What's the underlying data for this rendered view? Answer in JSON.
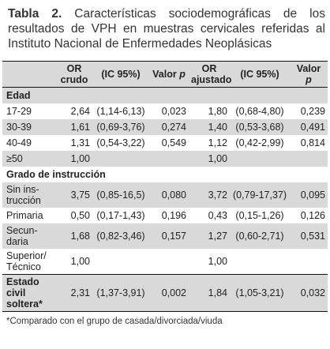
{
  "title": {
    "label": "Tabla 2.",
    "text": "Características sociodemográficas de los resultados de VPH en muestras cervicales referidas al Instituto Nacional de Enfermedades Neoplásicas"
  },
  "table": {
    "header": [
      {
        "text": "OR\ncrudo"
      },
      {
        "text": "(IC 95%)"
      },
      {
        "text": "Valor",
        "var": "p"
      },
      {
        "text": "OR\najustado"
      },
      {
        "text": "(IC 95%)"
      },
      {
        "text": "Valor\n",
        "var": "p"
      }
    ],
    "rows": [
      {
        "section": "Edad"
      },
      {
        "label": "17-29",
        "or_crudo": "2,64",
        "ic_crudo": "(1,14-6,13)",
        "p_crudo": "0,023",
        "or_ajustado": "1,80",
        "ic_ajustado": "(0,68-4,80)",
        "p_ajustado": "0,239"
      },
      {
        "label": "30-39",
        "or_crudo": "1,61",
        "ic_crudo": "(0,69-3,76)",
        "p_crudo": "0,274",
        "or_ajustado": "1,40",
        "ic_ajustado": "(0,53-3,68)",
        "p_ajustado": "0,491"
      },
      {
        "label": "40-49",
        "or_crudo": "1,31",
        "ic_crudo": "(0,54-3,22)",
        "p_crudo": "0,549",
        "or_ajustado": "1,12",
        "ic_ajustado": "(0,42-2,99)",
        "p_ajustado": "0,814"
      },
      {
        "label": "≥50",
        "or_crudo": "1,00",
        "or_ajustado": "1,00"
      },
      {
        "section": "Grado de instrucción"
      },
      {
        "label": "Sin ins-\ntrucción",
        "or_crudo": "3,75",
        "ic_crudo": "(0,85-16,5)",
        "p_crudo": "0,080",
        "or_ajustado": "3,72",
        "ic_ajustado": "(0,79-17,37)",
        "p_ajustado": "0,095"
      },
      {
        "label": "Primaria",
        "or_crudo": "0,50",
        "ic_crudo": "(0,17-1,43)",
        "p_crudo": "0,196",
        "or_ajustado": "0,43",
        "ic_ajustado": "(0,15-1,26)",
        "p_ajustado": "0,126"
      },
      {
        "label": "Secun-\ndaria",
        "or_crudo": "1,68",
        "ic_crudo": "(0,82-3,46)",
        "p_crudo": "0,157",
        "or_ajustado": "1,27",
        "ic_ajustado": "(0,60-2,71)",
        "p_ajustado": "0,531"
      },
      {
        "label": "Superior/\nTécnico",
        "or_crudo": "1,00",
        "or_ajustado": "1,00"
      },
      {
        "label": "Estado\ncivil\nsoltera*",
        "bold": true,
        "or_crudo": "2,31",
        "ic_crudo": "(1,37-3,91)",
        "p_crudo": "0,002",
        "or_ajustado": "1,84",
        "ic_ajustado": "(1,05-3,21)",
        "p_ajustado": "0,032"
      }
    ]
  },
  "footnote": "*Comparado con el grupo de casada/divorciada/viuda"
}
